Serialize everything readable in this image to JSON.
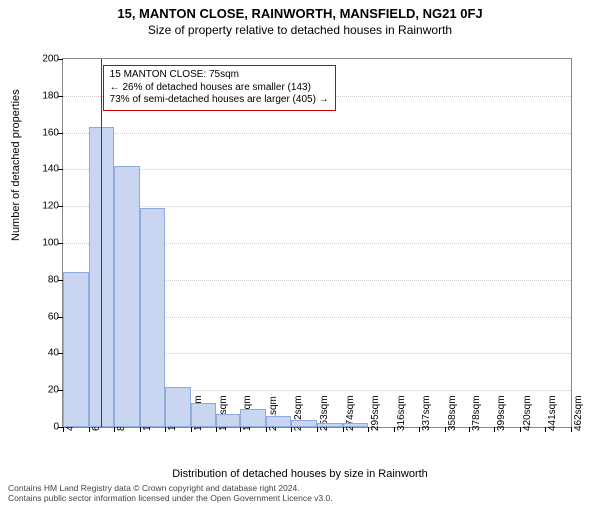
{
  "titles": {
    "main": "15, MANTON CLOSE, RAINWORTH, MANSFIELD, NG21 0FJ",
    "sub": "Size of property relative to detached houses in Rainworth"
  },
  "chart": {
    "type": "histogram",
    "ylabel": "Number of detached properties",
    "xlabel": "Distribution of detached houses by size in Rainworth",
    "ylim": [
      0,
      200
    ],
    "ytick_step": 20,
    "yticks": [
      0,
      20,
      40,
      60,
      80,
      100,
      120,
      140,
      160,
      180,
      200
    ],
    "xticks": [
      44,
      65,
      86,
      107,
      128,
      149,
      170,
      190,
      211,
      232,
      253,
      274,
      295,
      316,
      337,
      358,
      378,
      399,
      420,
      441,
      462
    ],
    "x_unit": "sqm",
    "xlim": [
      44,
      462
    ],
    "bar_color": "#cad6ef",
    "bar_border": "#8faadc",
    "grid_color": "#cccccc",
    "marker_color": "#cc0000",
    "background": "#ffffff",
    "bars": [
      {
        "x0": 44,
        "x1": 65,
        "value": 84
      },
      {
        "x0": 65,
        "x1": 86,
        "value": 163
      },
      {
        "x0": 86,
        "x1": 107,
        "value": 142
      },
      {
        "x0": 107,
        "x1": 128,
        "value": 119
      },
      {
        "x0": 128,
        "x1": 149,
        "value": 22
      },
      {
        "x0": 149,
        "x1": 170,
        "value": 13
      },
      {
        "x0": 170,
        "x1": 190,
        "value": 7
      },
      {
        "x0": 190,
        "x1": 211,
        "value": 10
      },
      {
        "x0": 211,
        "x1": 232,
        "value": 6
      },
      {
        "x0": 232,
        "x1": 253,
        "value": 4
      },
      {
        "x0": 253,
        "x1": 274,
        "value": 2
      },
      {
        "x0": 274,
        "x1": 295,
        "value": 2
      }
    ],
    "marker_x": 75,
    "callout": {
      "line1": "15 MANTON CLOSE: 75sqm",
      "line2": "← 26% of detached houses are smaller (143)",
      "line3": "73% of semi-detached houses are larger (405) →"
    }
  },
  "footer": {
    "line1": "Contains HM Land Registry data © Crown copyright and database right 2024.",
    "line2": "Contains public sector information licensed under the Open Government Licence v3.0."
  }
}
